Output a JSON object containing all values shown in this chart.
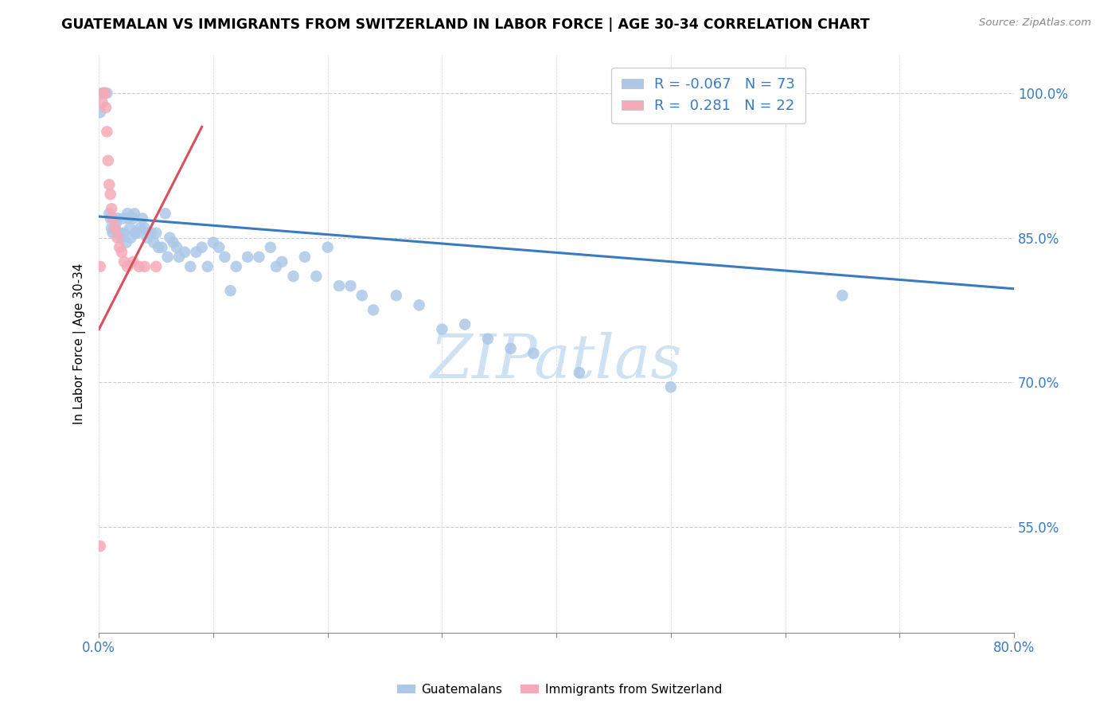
{
  "title": "GUATEMALAN VS IMMIGRANTS FROM SWITZERLAND IN LABOR FORCE | AGE 30-34 CORRELATION CHART",
  "source": "Source: ZipAtlas.com",
  "ylabel": "In Labor Force | Age 30-34",
  "ytick_vals_shown": [
    0.55,
    0.7,
    0.85,
    1.0
  ],
  "ytick_labels_shown": [
    "55.0%",
    "70.0%",
    "85.0%",
    "100.0%"
  ],
  "xmin": 0.0,
  "xmax": 0.8,
  "ymin": 0.44,
  "ymax": 1.04,
  "blue_R": -0.067,
  "blue_N": 73,
  "pink_R": 0.281,
  "pink_N": 22,
  "blue_color": "#adc8e8",
  "pink_color": "#f5aab8",
  "trendline_blue_color": "#3a7bbf",
  "trendline_pink_color": "#d94f60",
  "blue_trendline_x": [
    0.0,
    0.8
  ],
  "blue_trendline_y": [
    0.872,
    0.797
  ],
  "pink_trendline_x": [
    0.0,
    0.09
  ],
  "pink_trendline_y": [
    0.755,
    0.965
  ],
  "blue_scatter_x": [
    0.001,
    0.003,
    0.005,
    0.007,
    0.009,
    0.01,
    0.011,
    0.012,
    0.013,
    0.015,
    0.016,
    0.018,
    0.02,
    0.021,
    0.022,
    0.024,
    0.025,
    0.026,
    0.027,
    0.028,
    0.03,
    0.031,
    0.032,
    0.034,
    0.036,
    0.038,
    0.04,
    0.042,
    0.044,
    0.046,
    0.048,
    0.05,
    0.052,
    0.055,
    0.058,
    0.06,
    0.062,
    0.065,
    0.068,
    0.07,
    0.075,
    0.08,
    0.085,
    0.09,
    0.095,
    0.1,
    0.105,
    0.11,
    0.115,
    0.12,
    0.13,
    0.14,
    0.15,
    0.155,
    0.16,
    0.17,
    0.18,
    0.19,
    0.2,
    0.21,
    0.22,
    0.23,
    0.24,
    0.26,
    0.28,
    0.3,
    0.32,
    0.34,
    0.36,
    0.38,
    0.42,
    0.5,
    0.65
  ],
  "blue_scatter_y": [
    0.98,
    1.0,
    1.0,
    1.0,
    0.875,
    0.87,
    0.86,
    0.855,
    0.86,
    0.865,
    0.87,
    0.855,
    0.85,
    0.87,
    0.855,
    0.845,
    0.875,
    0.87,
    0.86,
    0.85,
    0.87,
    0.875,
    0.855,
    0.855,
    0.86,
    0.87,
    0.86,
    0.85,
    0.855,
    0.855,
    0.845,
    0.855,
    0.84,
    0.84,
    0.875,
    0.83,
    0.85,
    0.845,
    0.84,
    0.83,
    0.835,
    0.82,
    0.835,
    0.84,
    0.82,
    0.845,
    0.84,
    0.83,
    0.795,
    0.82,
    0.83,
    0.83,
    0.84,
    0.82,
    0.825,
    0.81,
    0.83,
    0.81,
    0.84,
    0.8,
    0.8,
    0.79,
    0.775,
    0.79,
    0.78,
    0.755,
    0.76,
    0.745,
    0.735,
    0.73,
    0.71,
    0.695,
    0.79
  ],
  "pink_scatter_x": [
    0.001,
    0.003,
    0.004,
    0.005,
    0.006,
    0.007,
    0.008,
    0.009,
    0.01,
    0.011,
    0.012,
    0.014,
    0.016,
    0.018,
    0.02,
    0.022,
    0.025,
    0.03,
    0.035,
    0.04,
    0.05,
    0.001
  ],
  "pink_scatter_y": [
    0.82,
    0.99,
    1.0,
    1.0,
    0.985,
    0.96,
    0.93,
    0.905,
    0.895,
    0.88,
    0.87,
    0.86,
    0.85,
    0.84,
    0.835,
    0.825,
    0.82,
    0.825,
    0.82,
    0.82,
    0.82,
    0.53
  ],
  "watermark": "ZIPatlas",
  "watermark_color": "#cfe2f3"
}
